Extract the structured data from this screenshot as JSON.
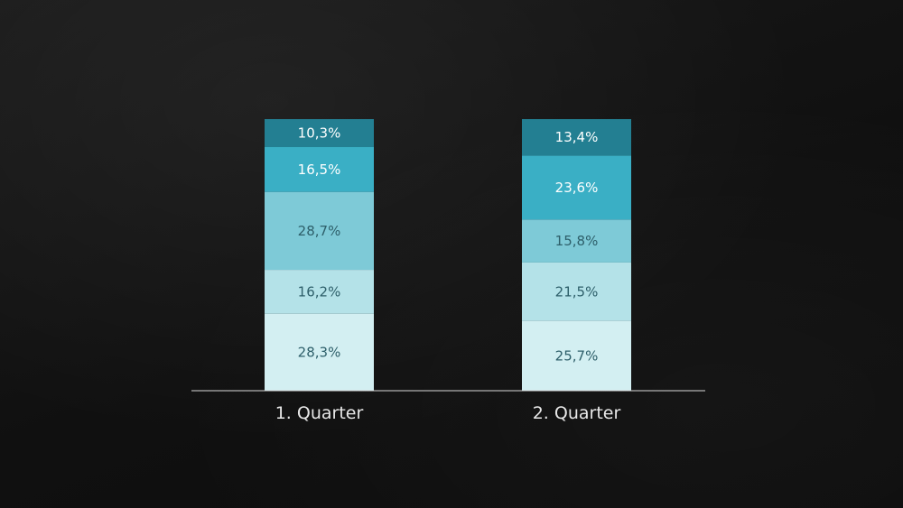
{
  "chart_data": {
    "type": "bar",
    "stacked": true,
    "categories": [
      "1. Quarter",
      "2. Quarter"
    ],
    "series": [
      {
        "values": [
          28.3,
          25.7
        ],
        "labels": [
          "28,3%",
          "25,7%"
        ],
        "color": "#d3eff2",
        "text_color": "#2e5f6a"
      },
      {
        "values": [
          16.2,
          21.5
        ],
        "labels": [
          "16,2%",
          "21,5%"
        ],
        "color": "#b4e2e8",
        "text_color": "#2e5f6a"
      },
      {
        "values": [
          28.7,
          15.8
        ],
        "labels": [
          "28,7%",
          "15,8%"
        ],
        "color": "#7ecad7",
        "text_color": "#2e5f6a"
      },
      {
        "values": [
          16.5,
          23.6
        ],
        "labels": [
          "16,5%",
          "23,6%"
        ],
        "color": "#3aafc5",
        "text_color": "#ffffff"
      },
      {
        "values": [
          10.3,
          13.4
        ],
        "labels": [
          "10,3%",
          "13,4%"
        ],
        "color": "#237f92",
        "text_color": "#ffffff"
      }
    ],
    "ylim": [
      0,
      100
    ],
    "title": "",
    "xlabel": "",
    "ylabel": "",
    "legend": false,
    "grid": false
  },
  "colors": {
    "background": "#121212",
    "axis_line": "#d9d9d9",
    "category_text": "#e8e8e8"
  }
}
